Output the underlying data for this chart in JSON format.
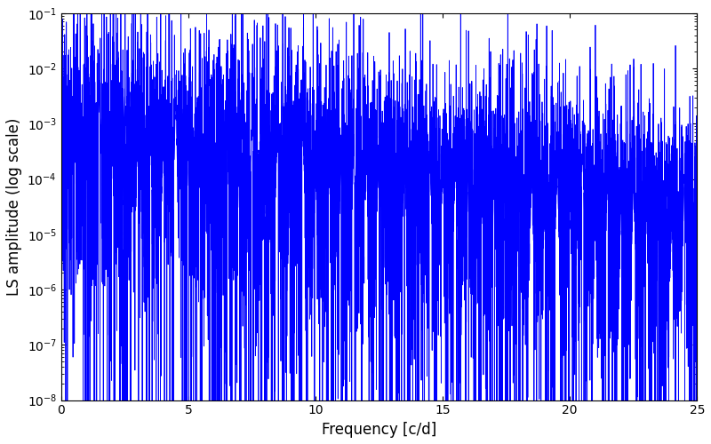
{
  "title": "",
  "xlabel": "Frequency [c/d]",
  "ylabel": "LS amplitude (log scale)",
  "xlim": [
    0,
    25
  ],
  "ylim": [
    1e-08,
    0.1
  ],
  "line_color": "#0000ff",
  "background_color": "#ffffff",
  "freq_min": 0.0,
  "freq_max": 25.0,
  "n_points": 8000,
  "seed": 137,
  "noise_floor_low": 0.0003,
  "noise_floor_high": 1e-05,
  "decay_rate": 0.1
}
